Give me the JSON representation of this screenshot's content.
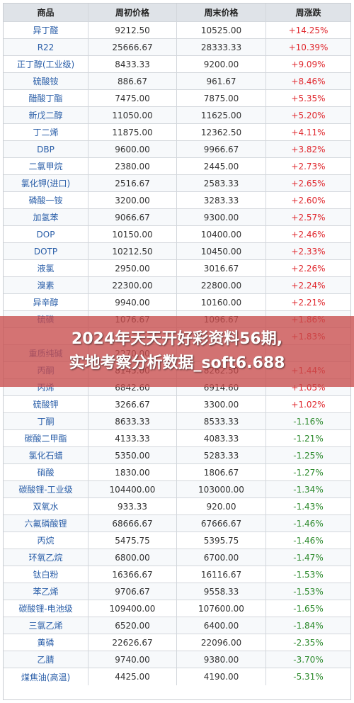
{
  "table": {
    "headers": [
      "商品",
      "周初价格",
      "周末价格",
      "周涨跌"
    ],
    "rows": [
      {
        "name": "异丁醛",
        "start": "9212.50",
        "end": "10525.00",
        "change": "+14.25%",
        "dir": "up"
      },
      {
        "name": "R22",
        "start": "25666.67",
        "end": "28333.33",
        "change": "+10.39%",
        "dir": "up"
      },
      {
        "name": "正丁醇(工业级)",
        "start": "8433.33",
        "end": "9200.00",
        "change": "+9.09%",
        "dir": "up"
      },
      {
        "name": "硫酸铵",
        "start": "886.67",
        "end": "961.67",
        "change": "+8.46%",
        "dir": "up"
      },
      {
        "name": "醋酸丁酯",
        "start": "7475.00",
        "end": "7875.00",
        "change": "+5.35%",
        "dir": "up"
      },
      {
        "name": "新戊二醇",
        "start": "11050.00",
        "end": "11625.00",
        "change": "+5.20%",
        "dir": "up"
      },
      {
        "name": "丁二烯",
        "start": "11875.00",
        "end": "12362.50",
        "change": "+4.11%",
        "dir": "up"
      },
      {
        "name": "DBP",
        "start": "9600.00",
        "end": "9966.67",
        "change": "+3.82%",
        "dir": "up"
      },
      {
        "name": "二氯甲烷",
        "start": "2380.00",
        "end": "2445.00",
        "change": "+2.73%",
        "dir": "up"
      },
      {
        "name": "氯化钾(进口)",
        "start": "2516.67",
        "end": "2583.33",
        "change": "+2.65%",
        "dir": "up"
      },
      {
        "name": "磷酸一铵",
        "start": "3200.00",
        "end": "3283.33",
        "change": "+2.60%",
        "dir": "up"
      },
      {
        "name": "加氢苯",
        "start": "9066.67",
        "end": "9300.00",
        "change": "+2.57%",
        "dir": "up"
      },
      {
        "name": "DOP",
        "start": "10150.00",
        "end": "10400.00",
        "change": "+2.46%",
        "dir": "up"
      },
      {
        "name": "DOTP",
        "start": "10212.50",
        "end": "10450.00",
        "change": "+2.33%",
        "dir": "up"
      },
      {
        "name": "液氯",
        "start": "2950.00",
        "end": "3016.67",
        "change": "+2.26%",
        "dir": "up"
      },
      {
        "name": "溴素",
        "start": "22300.00",
        "end": "22800.00",
        "change": "+2.24%",
        "dir": "up"
      },
      {
        "name": "异辛醇",
        "start": "9940.00",
        "end": "10160.00",
        "change": "+2.21%",
        "dir": "up"
      },
      {
        "name": "硫磺",
        "start": "1076.67",
        "end": "1096.67",
        "change": "+1.86%",
        "dir": "up"
      },
      {
        "name": "",
        "start": "",
        "end": "",
        "change": "+1.83%",
        "dir": "up"
      },
      {
        "name": "重质纯碱",
        "start": "2270.00",
        "end": "",
        "change": "",
        "dir": "up"
      },
      {
        "name": "丙酮",
        "start": "8145.00",
        "end": "8262.50",
        "change": "+1.44%",
        "dir": "up"
      },
      {
        "name": "丙烯",
        "start": "6842.60",
        "end": "6914.60",
        "change": "+1.05%",
        "dir": "up"
      },
      {
        "name": "硫酸钾",
        "start": "3266.67",
        "end": "3300.00",
        "change": "+1.02%",
        "dir": "up"
      },
      {
        "name": "丁酮",
        "start": "8633.33",
        "end": "8533.33",
        "change": "-1.16%",
        "dir": "down"
      },
      {
        "name": "碳酸二甲酯",
        "start": "4133.33",
        "end": "4083.33",
        "change": "-1.21%",
        "dir": "down"
      },
      {
        "name": "氯化石蜡",
        "start": "5350.00",
        "end": "5283.33",
        "change": "-1.25%",
        "dir": "down"
      },
      {
        "name": "硝酸",
        "start": "1830.00",
        "end": "1806.67",
        "change": "-1.27%",
        "dir": "down"
      },
      {
        "name": "碳酸锂-工业级",
        "start": "104400.00",
        "end": "103000.00",
        "change": "-1.34%",
        "dir": "down"
      },
      {
        "name": "双氧水",
        "start": "933.33",
        "end": "920.00",
        "change": "-1.43%",
        "dir": "down"
      },
      {
        "name": "六氟磷酸锂",
        "start": "68666.67",
        "end": "67666.67",
        "change": "-1.46%",
        "dir": "down"
      },
      {
        "name": "丙烷",
        "start": "5475.75",
        "end": "5395.75",
        "change": "-1.46%",
        "dir": "down"
      },
      {
        "name": "环氧乙烷",
        "start": "6800.00",
        "end": "6700.00",
        "change": "-1.47%",
        "dir": "down"
      },
      {
        "name": "钛白粉",
        "start": "16366.67",
        "end": "16116.67",
        "change": "-1.53%",
        "dir": "down"
      },
      {
        "name": "苯乙烯",
        "start": "9706.67",
        "end": "9558.33",
        "change": "-1.53%",
        "dir": "down"
      },
      {
        "name": "碳酸锂-电池级",
        "start": "109400.00",
        "end": "107600.00",
        "change": "-1.65%",
        "dir": "down"
      },
      {
        "name": "三氯乙烯",
        "start": "6520.00",
        "end": "6400.00",
        "change": "-1.84%",
        "dir": "down"
      },
      {
        "name": "黄磷",
        "start": "22626.67",
        "end": "22096.00",
        "change": "-2.35%",
        "dir": "down"
      },
      {
        "name": "乙腈",
        "start": "9740.00",
        "end": "9380.00",
        "change": "-3.70%",
        "dir": "down"
      },
      {
        "name": "煤焦油(高温)",
        "start": "4425.00",
        "end": "4190.00",
        "change": "-5.31%",
        "dir": "down"
      }
    ]
  },
  "banner": {
    "line1": "2024年天天开好彩资料56期,",
    "line2": "实地考察分析数据_soft6.688"
  }
}
